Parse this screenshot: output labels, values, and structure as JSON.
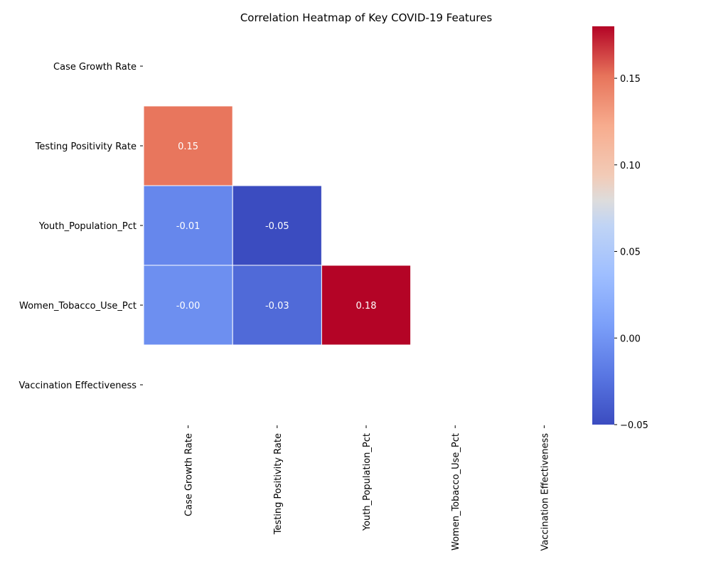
{
  "chart_data": {
    "type": "heatmap",
    "title": "Correlation Heatmap of Key COVID-19 Features",
    "variables": [
      "Case Growth Rate",
      "Testing Positivity Rate",
      "Youth_Population_Pct",
      "Women_Tobacco_Use_Pct",
      "Vaccination Effectiveness"
    ],
    "mask": "upper triangle and diagonal hidden",
    "cells": [
      {
        "row": 1,
        "col": 0,
        "value": 0.15,
        "label": "0.15"
      },
      {
        "row": 2,
        "col": 0,
        "value": -0.01,
        "label": "-0.01"
      },
      {
        "row": 2,
        "col": 1,
        "value": -0.05,
        "label": "-0.05"
      },
      {
        "row": 3,
        "col": 0,
        "value": -0.004,
        "label": "-0.00"
      },
      {
        "row": 3,
        "col": 1,
        "value": -0.03,
        "label": "-0.03"
      },
      {
        "row": 3,
        "col": 2,
        "value": 0.18,
        "label": "0.18"
      }
    ],
    "colormap": "coolwarm",
    "color_range": [
      -0.05,
      0.18
    ],
    "colorbar_ticks": [
      {
        "value": -0.05,
        "label": "−0.05"
      },
      {
        "value": 0.0,
        "label": "0.00"
      },
      {
        "value": 0.05,
        "label": "0.05"
      },
      {
        "value": 0.1,
        "label": "0.10"
      },
      {
        "value": 0.15,
        "label": "0.15"
      }
    ]
  }
}
